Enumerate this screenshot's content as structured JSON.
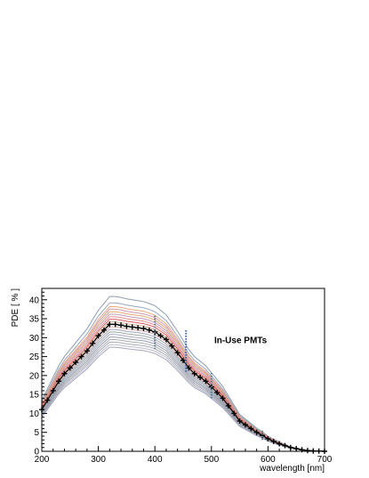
{
  "chart_data": {
    "type": "line",
    "title": "",
    "xlabel": "wavelength [nm]",
    "ylabel": "PDE [ % ]",
    "annotation": "In-Use PMTs",
    "xlim": [
      200,
      700
    ],
    "ylim": [
      0,
      43
    ],
    "x_ticks": [
      200,
      300,
      400,
      500,
      600,
      700
    ],
    "y_ticks": [
      0,
      5,
      10,
      15,
      20,
      25,
      30,
      35,
      40
    ],
    "grid": false,
    "legend": "none",
    "x": [
      200,
      210,
      220,
      230,
      240,
      250,
      260,
      270,
      280,
      290,
      300,
      310,
      320,
      330,
      340,
      350,
      360,
      370,
      380,
      390,
      400,
      410,
      420,
      430,
      440,
      450,
      460,
      470,
      480,
      490,
      500,
      510,
      520,
      530,
      540,
      550,
      560,
      570,
      580,
      590,
      600,
      610,
      620,
      630,
      640,
      650,
      660,
      670,
      680,
      690,
      700
    ],
    "mean_series": {
      "name": "mean",
      "color": "#000000",
      "values": [
        11.0,
        13.5,
        16.0,
        18.5,
        20.5,
        22.0,
        23.5,
        25.0,
        26.5,
        28.5,
        30.5,
        32.0,
        33.5,
        33.5,
        33.3,
        33.0,
        32.8,
        32.6,
        32.4,
        32.0,
        31.5,
        30.5,
        29.5,
        27.8,
        26.0,
        24.0,
        22.0,
        20.5,
        19.5,
        18.5,
        17.0,
        15.5,
        14.0,
        12.0,
        10.0,
        8.0,
        7.0,
        6.0,
        5.0,
        4.2,
        3.3,
        2.6,
        2.0,
        1.5,
        1.0,
        0.7,
        0.4,
        0.2,
        0.1,
        0.05,
        0.0
      ]
    },
    "series": [
      {
        "scale": 1.22,
        "color": "#7f93a6"
      },
      {
        "scale": 1.17,
        "color": "#8d9cb8"
      },
      {
        "scale": 1.14,
        "color": "#e8a070"
      },
      {
        "scale": 1.12,
        "color": "#c58ea8"
      },
      {
        "scale": 1.1,
        "color": "#e0a060"
      },
      {
        "scale": 1.08,
        "color": "#b890b0"
      },
      {
        "scale": 1.06,
        "color": "#e08080"
      },
      {
        "scale": 1.04,
        "color": "#d44a4a"
      },
      {
        "scale": 1.02,
        "color": "#c8a07a"
      },
      {
        "scale": 1.0,
        "color": "#e06a6a"
      },
      {
        "scale": 0.98,
        "color": "#d2a3a3"
      },
      {
        "scale": 0.96,
        "color": "#9a9ab0"
      },
      {
        "scale": 0.94,
        "color": "#8fa09a"
      },
      {
        "scale": 0.92,
        "color": "#a0a0c0"
      },
      {
        "scale": 0.9,
        "color": "#8b95a5"
      },
      {
        "scale": 0.88,
        "color": "#a3a3a3"
      },
      {
        "scale": 0.86,
        "color": "#9aa0b0"
      },
      {
        "scale": 0.84,
        "color": "#b4b4c8"
      },
      {
        "scale": 0.82,
        "color": "#9b9bb4"
      }
    ],
    "markers": [
      {
        "x": 400,
        "low": 27,
        "high": 36,
        "color": "#607890"
      },
      {
        "x": 455,
        "low": 21,
        "high": 32,
        "color": "#4060a0"
      },
      {
        "x": 500,
        "low": 14,
        "high": 21,
        "color": "#4a7aa0"
      },
      {
        "x": 590,
        "low": 3,
        "high": 5.5,
        "color": "#6080a0"
      }
    ]
  }
}
